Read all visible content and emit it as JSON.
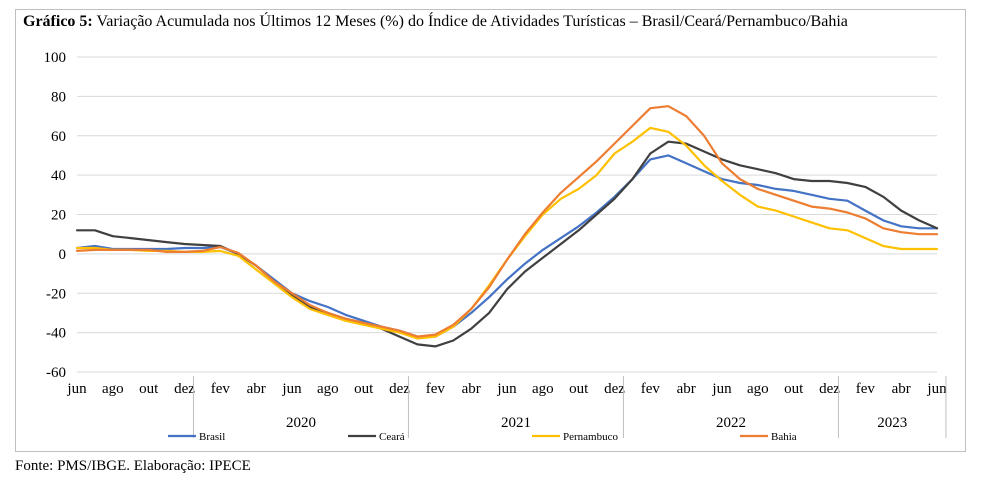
{
  "title_prefix": "Gráfico 5:",
  "title_rest": " Variação Acumulada nos Últimos 12 Meses (%) do Índice de Atividades Turísticas – Brasil/Ceará/Pernambuco/Bahia",
  "source": "Fonte: PMS/IBGE. Elaboração: IPECE",
  "chart_data": {
    "type": "line",
    "x_month_labels": [
      "jun",
      "ago",
      "out",
      "dez",
      "fev",
      "abr",
      "jun",
      "ago",
      "out",
      "dez",
      "fev",
      "abr",
      "jun",
      "ago",
      "out",
      "dez",
      "fev",
      "abr",
      "jun",
      "ago",
      "out",
      "dez",
      "fev",
      "abr",
      "jun"
    ],
    "x_years": [
      {
        "label": "2020",
        "from": "2020-01",
        "to": "2020-12"
      },
      {
        "label": "2021",
        "from": "2021-01",
        "to": "2021-12"
      },
      {
        "label": "2022",
        "from": "2022-01",
        "to": "2022-12"
      },
      {
        "label": "2023",
        "from": "2023-01",
        "to": "2023-06"
      }
    ],
    "x": [
      "2019-06",
      "2019-07",
      "2019-08",
      "2019-09",
      "2019-10",
      "2019-11",
      "2019-12",
      "2020-01",
      "2020-02",
      "2020-03",
      "2020-04",
      "2020-05",
      "2020-06",
      "2020-07",
      "2020-08",
      "2020-09",
      "2020-10",
      "2020-11",
      "2020-12",
      "2021-01",
      "2021-02",
      "2021-03",
      "2021-04",
      "2021-05",
      "2021-06",
      "2021-07",
      "2021-08",
      "2021-09",
      "2021-10",
      "2021-11",
      "2021-12",
      "2022-01",
      "2022-02",
      "2022-03",
      "2022-04",
      "2022-05",
      "2022-06",
      "2022-07",
      "2022-08",
      "2022-09",
      "2022-10",
      "2022-11",
      "2022-12",
      "2023-01",
      "2023-02",
      "2023-03",
      "2023-04",
      "2023-05",
      "2023-06"
    ],
    "y_ticks": [
      100,
      80,
      60,
      40,
      20,
      0,
      -20,
      -40,
      -60
    ],
    "ylim": [
      -60,
      100
    ],
    "grid": true,
    "legend": "bottom",
    "series": [
      {
        "name": "Brasil",
        "color": "#4472c4",
        "values": [
          3,
          4,
          2.5,
          2.5,
          2.5,
          2.5,
          3,
          3,
          3.5,
          0,
          -6,
          -13,
          -20,
          -24,
          -27,
          -31,
          -34,
          -37,
          -39,
          -42,
          -42,
          -37,
          -30,
          -22,
          -13,
          -5,
          2,
          8,
          14,
          21,
          29,
          38,
          48,
          50,
          46,
          42,
          38,
          36,
          35,
          33,
          32,
          30,
          28,
          27,
          22,
          17,
          14,
          13,
          13
        ]
      },
      {
        "name": "Ceará",
        "color": "#404040",
        "values": [
          12,
          12,
          9,
          8,
          7,
          6,
          5,
          4.5,
          4,
          0,
          -6,
          -14,
          -21,
          -27,
          -30,
          -33,
          -35,
          -38,
          -42,
          -46,
          -47,
          -44,
          -38,
          -30,
          -18,
          -9,
          -2,
          5,
          12,
          20,
          28,
          38,
          51,
          57,
          56,
          52,
          48,
          45,
          43,
          41,
          38,
          37,
          37,
          36,
          34,
          29,
          22,
          17,
          13
        ]
      },
      {
        "name": "Pernambuco",
        "color": "#ffc000",
        "values": [
          3,
          3,
          2,
          2,
          1.5,
          1.5,
          1,
          1,
          1.5,
          -1,
          -8,
          -15,
          -22,
          -28,
          -31,
          -34,
          -36,
          -38,
          -40,
          -43,
          -42,
          -37,
          -28,
          -16,
          -3,
          9,
          20,
          28,
          33,
          40,
          51,
          57,
          64,
          62,
          55,
          45,
          37,
          30,
          24,
          22,
          19,
          16,
          13,
          12,
          8,
          4,
          2.5,
          2.5,
          2.5
        ]
      },
      {
        "name": "Bahia",
        "color": "#ed7d31",
        "values": [
          1.5,
          2,
          2,
          2,
          2,
          1,
          1,
          1.5,
          3.5,
          0.5,
          -6,
          -14,
          -20,
          -26,
          -30,
          -33,
          -35,
          -37,
          -39,
          -42,
          -41,
          -36,
          -28,
          -17,
          -3,
          10,
          21,
          31,
          39,
          47,
          56,
          65,
          74,
          75,
          70,
          60,
          46,
          38,
          33,
          30,
          27,
          24,
          23,
          21,
          18,
          13,
          11,
          10,
          10
        ]
      }
    ]
  }
}
